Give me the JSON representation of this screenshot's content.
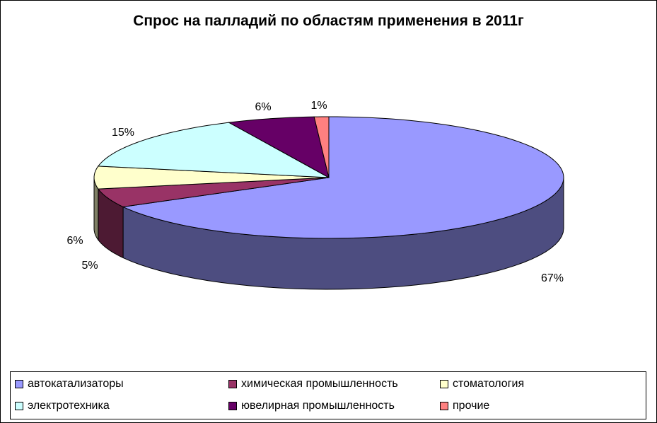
{
  "chart_data": {
    "type": "pie",
    "style": "3d-exploded-none",
    "title": "Спрос на палладий по областям применения в 2011г",
    "categories": [
      "автокатализаторы",
      "химическая промышленность",
      "стоматология",
      "электротехника",
      "ювелирная промышленность",
      "прочие"
    ],
    "values": [
      67,
      5,
      6,
      15,
      6,
      1
    ],
    "value_labels": [
      "67%",
      "5%",
      "6%",
      "15%",
      "6%",
      "1%"
    ],
    "colors": [
      "#9999FF",
      "#993366",
      "#FFFFCC",
      "#CCFFFF",
      "#660066",
      "#FF8080"
    ],
    "legend_position": "bottom"
  }
}
